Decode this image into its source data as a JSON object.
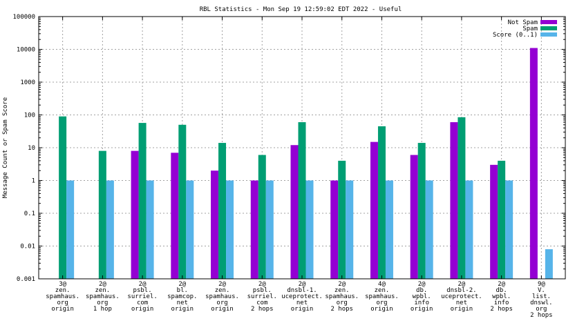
{
  "chart_data": {
    "type": "bar",
    "title": "RBL Statistics - Mon Sep 19 12:59:02 EDT 2022 - Useful",
    "xlabel": "",
    "ylabel": "Message Count or Spam Score",
    "yscale": "log",
    "ylim": [
      0.001,
      100000
    ],
    "y_ticks": [
      "0.001",
      "0.01",
      "0.1",
      "1",
      "10",
      "100",
      "1000",
      "10000",
      "100000"
    ],
    "grid": true,
    "legend_position": "top-right",
    "categories": [
      [
        "3@",
        "zen.",
        "spamhaus.",
        "org",
        "origin"
      ],
      [
        "2@",
        "zen.",
        "spamhaus.",
        "org",
        "1 hop"
      ],
      [
        "2@",
        "psbl.",
        "surriel.",
        "com",
        "origin"
      ],
      [
        "2@",
        "bl.",
        "spamcop.",
        "net",
        "origin"
      ],
      [
        "2@",
        "zen.",
        "spamhaus.",
        "org",
        "origin"
      ],
      [
        "2@",
        "psbl.",
        "surriel.",
        "com",
        "2 hops"
      ],
      [
        "2@",
        "dnsbl-1.",
        "uceprotect.",
        "net",
        "origin"
      ],
      [
        "2@",
        "zen.",
        "spamhaus.",
        "org",
        "2 hops"
      ],
      [
        "4@",
        "zen.",
        "spamhaus.",
        "org",
        "origin"
      ],
      [
        "2@",
        "db.",
        "wpbl.",
        "info",
        "origin"
      ],
      [
        "2@",
        "dnsbl-2.",
        "uceprotect.",
        "net",
        "origin"
      ],
      [
        "2@",
        "db.",
        "wpbl.",
        "info",
        "2 hops"
      ],
      [
        "9@",
        "V.",
        "list.",
        "dnswl.",
        "org",
        "2 hops"
      ]
    ],
    "series": [
      {
        "name": "Not Spam",
        "color": "#9400d3",
        "values": [
          null,
          null,
          8,
          7,
          2,
          1,
          12,
          1,
          15,
          6,
          60,
          3,
          11000
        ]
      },
      {
        "name": "Spam",
        "color": "#009e73",
        "values": [
          90,
          8,
          57,
          50,
          14,
          6,
          60,
          4,
          45,
          14,
          85,
          4,
          null
        ]
      },
      {
        "name": "Score (0..1)",
        "color": "#56b4e9",
        "values": [
          1,
          1,
          1,
          1,
          1,
          1,
          1,
          1,
          1,
          1,
          1,
          1,
          0.008
        ]
      }
    ]
  }
}
